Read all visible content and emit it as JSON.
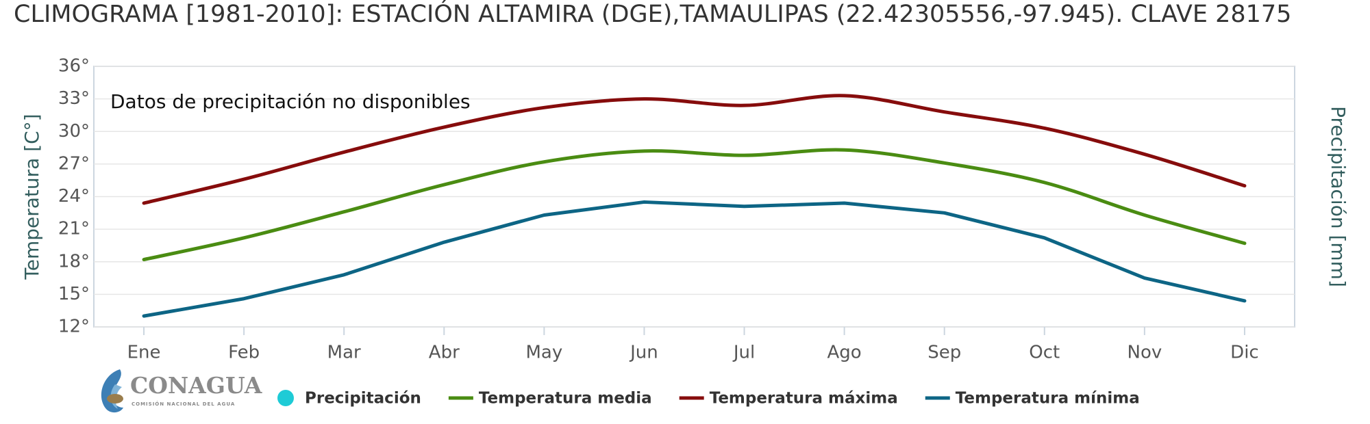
{
  "chart_data": {
    "type": "line",
    "title": "CLIMOGRAMA [1981-2010]: ESTACIÓN ALTAMIRA (DGE),TAMAULIPAS (22.42305556,-97.945). CLAVE 28175",
    "y_label": "Temperatura [C°]",
    "y2_label": "Precipitación [mm]",
    "annotation": "Datos de precipitación no disponibles",
    "logo": {
      "name": "CONAGUA",
      "subtitle": "COMISIÓN NACIONAL DEL AGUA"
    },
    "categories": [
      "Ene",
      "Feb",
      "Mar",
      "Abr",
      "May",
      "Jun",
      "Jul",
      "Ago",
      "Sep",
      "Oct",
      "Nov",
      "Dic"
    ],
    "ylim": [
      12,
      36
    ],
    "yticks": [
      {
        "value": 12,
        "label": "12°"
      },
      {
        "value": 15,
        "label": "15°"
      },
      {
        "value": 18,
        "label": "18°"
      },
      {
        "value": 21,
        "label": "21°"
      },
      {
        "value": 24,
        "label": "24°"
      },
      {
        "value": 27,
        "label": "27°"
      },
      {
        "value": 30,
        "label": "30°"
      },
      {
        "value": 33,
        "label": "33°"
      },
      {
        "value": 36,
        "label": "36°"
      }
    ],
    "grid": true,
    "series": [
      {
        "name": "Precipitación",
        "color": "#1ecbd6",
        "marker": "circle",
        "values": [
          null,
          null,
          null,
          null,
          null,
          null,
          null,
          null,
          null,
          null,
          null,
          null
        ]
      },
      {
        "name": "Temperatura media",
        "color": "#4a8c12",
        "smooth": true,
        "values": [
          18.2,
          20.2,
          22.6,
          25.1,
          27.2,
          28.2,
          27.8,
          28.3,
          27.1,
          25.3,
          22.3,
          19.7
        ]
      },
      {
        "name": "Temperatura máxima",
        "color": "#860c0c",
        "smooth": true,
        "values": [
          23.4,
          25.6,
          28.1,
          30.4,
          32.2,
          33.0,
          32.4,
          33.3,
          31.8,
          30.3,
          27.9,
          25.0
        ]
      },
      {
        "name": "Temperatura mínima",
        "color": "#0d6585",
        "smooth": false,
        "values": [
          13.0,
          14.6,
          16.8,
          19.8,
          22.3,
          23.5,
          23.1,
          23.4,
          22.5,
          20.2,
          16.5,
          14.4
        ]
      }
    ]
  }
}
